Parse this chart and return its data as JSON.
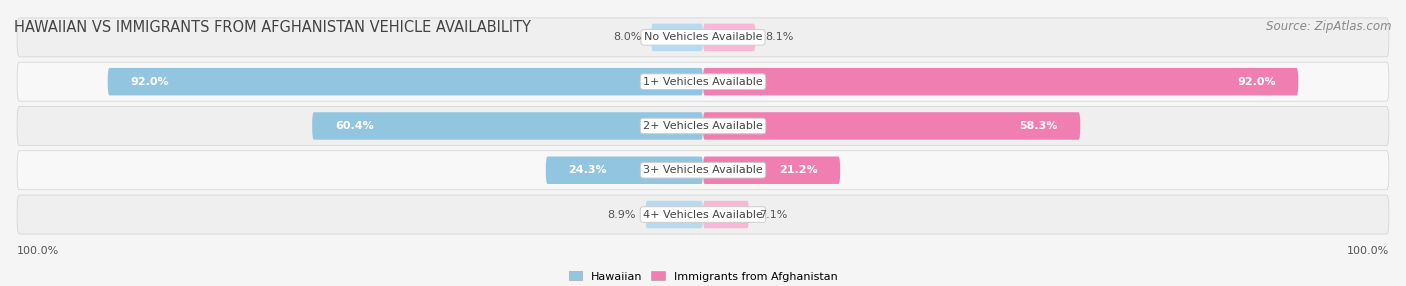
{
  "title": "HAWAIIAN VS IMMIGRANTS FROM AFGHANISTAN VEHICLE AVAILABILITY",
  "source": "Source: ZipAtlas.com",
  "categories": [
    "No Vehicles Available",
    "1+ Vehicles Available",
    "2+ Vehicles Available",
    "3+ Vehicles Available",
    "4+ Vehicles Available"
  ],
  "hawaiian_values": [
    8.0,
    92.0,
    60.4,
    24.3,
    8.9
  ],
  "afghanistan_values": [
    8.1,
    92.0,
    58.3,
    21.2,
    7.1
  ],
  "hawaiian_color": "#92C5E0",
  "afghanistan_color": "#F07EB0",
  "hawaiian_color_light": "#b8daf0",
  "afghanistan_color_light": "#f8b8d5",
  "max_value": 100.0,
  "legend_hawaiian": "Hawaiian",
  "legend_afghanistan": "Immigrants from Afghanistan",
  "title_fontsize": 10.5,
  "source_fontsize": 8.5,
  "label_fontsize": 8,
  "category_fontsize": 8,
  "row_bg_odd": "#efefef",
  "row_bg_even": "#f8f8f8",
  "fig_bg": "#f5f5f5"
}
